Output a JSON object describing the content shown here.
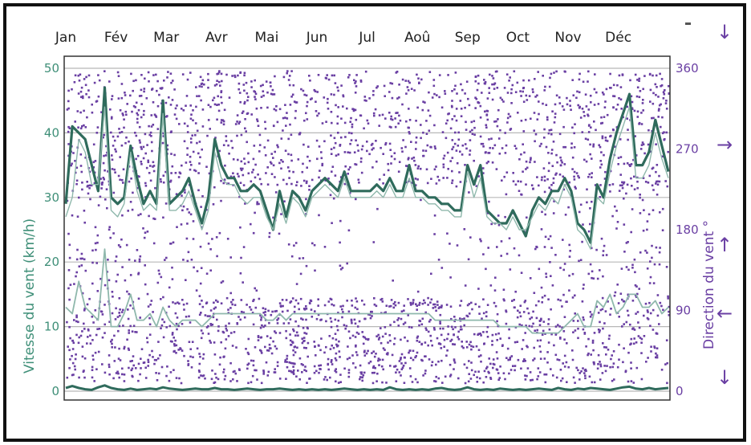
{
  "chart_data": {
    "type": "scatter",
    "months": [
      "Jan",
      "Fév",
      "Mar",
      "Avr",
      "Mai",
      "Jun",
      "Jul",
      "Aoû",
      "Sep",
      "Oct",
      "Nov",
      "Déc"
    ],
    "left_axis": {
      "label": "Vitesse du vent (km/h)",
      "ticks": [
        "0",
        "10",
        "20",
        "30",
        "40",
        "50"
      ],
      "ylim": [
        0,
        50
      ]
    },
    "right_axis": {
      "label": "Direction du vent °",
      "ticks": [
        "0",
        "90",
        "180",
        "270",
        "360"
      ],
      "ylim": [
        0,
        360
      ]
    },
    "direction_arrows": [
      "↓",
      "←",
      "↑",
      "→",
      "↓"
    ],
    "grid": true,
    "colors": {
      "scatter": "#6a3fa3",
      "line_dark": "#2f6b5c",
      "line_light": "#8fb8ac",
      "left_axis": "#3f8f78",
      "right_axis": "#6a3fa3",
      "grid": "#b8b8b8"
    },
    "series": [
      {
        "kind": "line",
        "values": [
          29,
          41,
          40,
          39,
          35,
          31,
          47,
          30,
          29,
          30,
          38,
          33,
          29,
          31,
          29,
          45,
          29,
          30,
          31,
          33,
          29,
          26,
          30,
          39,
          35,
          33,
          33,
          31,
          31,
          32,
          31,
          28,
          25,
          31,
          27,
          31,
          30,
          28,
          31,
          32,
          33,
          32,
          31,
          34,
          31,
          31,
          31,
          31,
          32,
          31,
          33,
          31,
          31,
          35,
          31,
          31,
          30,
          30,
          29,
          29,
          28,
          28,
          35,
          32,
          35,
          28,
          27,
          26,
          26,
          28,
          26,
          24,
          28,
          30,
          29,
          31,
          31,
          33,
          31,
          26,
          25,
          23,
          32,
          30,
          36,
          40,
          43,
          46,
          35,
          35,
          37,
          42,
          38,
          34
        ]
      },
      {
        "kind": "line",
        "values": [
          27,
          30,
          39,
          37,
          32,
          32,
          44,
          28,
          27,
          29,
          37,
          31,
          28,
          29,
          28,
          43,
          28,
          28,
          29,
          31,
          28,
          25,
          28,
          37,
          33,
          32,
          32,
          30,
          29,
          30,
          30,
          27,
          25,
          29,
          26,
          30,
          29,
          27,
          30,
          31,
          32,
          31,
          30,
          33,
          30,
          30,
          30,
          30,
          31,
          30,
          32,
          30,
          30,
          33,
          30,
          30,
          29,
          29,
          28,
          28,
          27,
          27,
          34,
          30,
          33,
          27,
          26,
          26,
          25,
          27,
          25,
          25,
          27,
          29,
          28,
          30,
          29,
          32,
          30,
          25,
          24,
          22,
          30,
          29,
          34,
          38,
          41,
          44,
          33,
          33,
          35,
          40,
          36,
          33
        ]
      },
      {
        "kind": "line",
        "values": [
          13,
          12,
          17,
          13,
          12,
          11,
          22,
          10,
          10,
          12,
          15,
          11,
          11,
          12,
          10,
          13,
          11,
          10,
          11,
          11,
          11,
          10,
          11,
          12,
          12,
          12,
          12,
          12,
          12,
          12,
          12,
          11,
          11,
          12,
          11,
          12,
          12,
          12,
          12,
          12,
          12,
          12,
          12,
          12,
          12,
          12,
          12,
          12,
          12,
          12,
          12,
          12,
          12,
          12,
          12,
          12,
          12,
          11,
          11,
          11,
          11,
          11,
          11,
          11,
          11,
          11,
          11,
          10,
          10,
          10,
          10,
          10,
          9,
          9,
          9,
          9,
          9,
          10,
          11,
          12,
          10,
          10,
          14,
          13,
          15,
          12,
          13,
          15,
          15,
          13,
          13,
          14,
          12,
          13
        ]
      },
      {
        "kind": "line",
        "values": [
          0.5,
          0.8,
          0.5,
          0.3,
          0.2,
          0.6,
          0.9,
          0.5,
          0.3,
          0.2,
          0.4,
          0.2,
          0.3,
          0.4,
          0.3,
          0.6,
          0.4,
          0.3,
          0.2,
          0.3,
          0.4,
          0.3,
          0.3,
          0.5,
          0.3,
          0.3,
          0.2,
          0.3,
          0.4,
          0.3,
          0.2,
          0.3,
          0.3,
          0.4,
          0.3,
          0.2,
          0.3,
          0.2,
          0.3,
          0.2,
          0.3,
          0.2,
          0.3,
          0.4,
          0.3,
          0.2,
          0.3,
          0.2,
          0.3,
          0.2,
          0.6,
          0.3,
          0.2,
          0.3,
          0.2,
          0.3,
          0.2,
          0.4,
          0.5,
          0.3,
          0.2,
          0.3,
          0.6,
          0.3,
          0.2,
          0.3,
          0.2,
          0.4,
          0.3,
          0.2,
          0.3,
          0.2,
          0.3,
          0.4,
          0.3,
          0.2,
          0.5,
          0.3,
          0.2,
          0.4,
          0.3,
          0.5,
          0.4,
          0.3,
          0.2,
          0.4,
          0.6,
          0.7,
          0.4,
          0.3,
          0.5,
          0.3,
          0.4,
          0.5
        ]
      }
    ]
  }
}
